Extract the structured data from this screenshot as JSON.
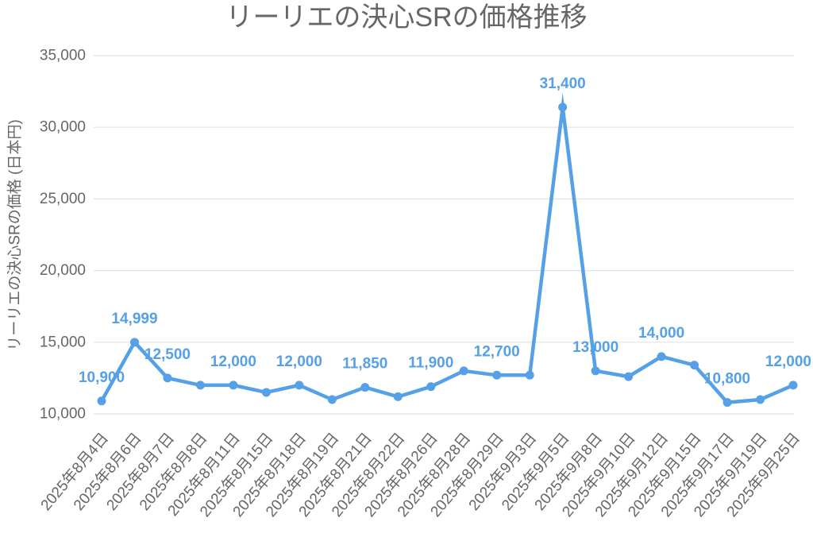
{
  "chart_data": {
    "type": "line",
    "title": "リーリエの決心SRの価格推移",
    "ylabel": "リーリエの決心SRの価格 (日本円)",
    "categories": [
      "2025年8月4日",
      "2025年8月6日",
      "2025年8月7日",
      "2025年8月8日",
      "2025年8月11日",
      "2025年8月15日",
      "2025年8月18日",
      "2025年8月19日",
      "2025年8月21日",
      "2025年8月22日",
      "2025年8月26日",
      "2025年8月28日",
      "2025年8月29日",
      "2025年9月3日",
      "2025年9月5日",
      "2025年9月8日",
      "2025年9月10日",
      "2025年9月12日",
      "2025年9月15日",
      "2025年9月17日",
      "2025年9月19日",
      "2025年9月25日"
    ],
    "series": [
      {
        "values": [
          10900,
          14999,
          12500,
          12000,
          12000,
          11500,
          12000,
          11000,
          11850,
          11200,
          11900,
          13000,
          12700,
          12700,
          31400,
          13000,
          12600,
          14000,
          13400,
          10800,
          11000,
          12000
        ],
        "color": "#55a0e6"
      }
    ],
    "data_labels": [
      "10,900",
      "14,999",
      "12,500",
      null,
      "12,000",
      null,
      "12,000",
      null,
      "11,850",
      null,
      "11,900",
      null,
      "12,700",
      null,
      "31,400",
      "13,000",
      null,
      "14,000",
      null,
      "10,800",
      null,
      "12,000"
    ],
    "ylim": [
      10000,
      35000
    ],
    "yticks": [
      {
        "value": 10000,
        "label": "10,000"
      },
      {
        "value": 15000,
        "label": "15,000"
      },
      {
        "value": 20000,
        "label": "20,000"
      },
      {
        "value": 25000,
        "label": "25,000"
      },
      {
        "value": 30000,
        "label": "30,000"
      },
      {
        "value": 35000,
        "label": "35,000"
      }
    ],
    "grid": true
  }
}
